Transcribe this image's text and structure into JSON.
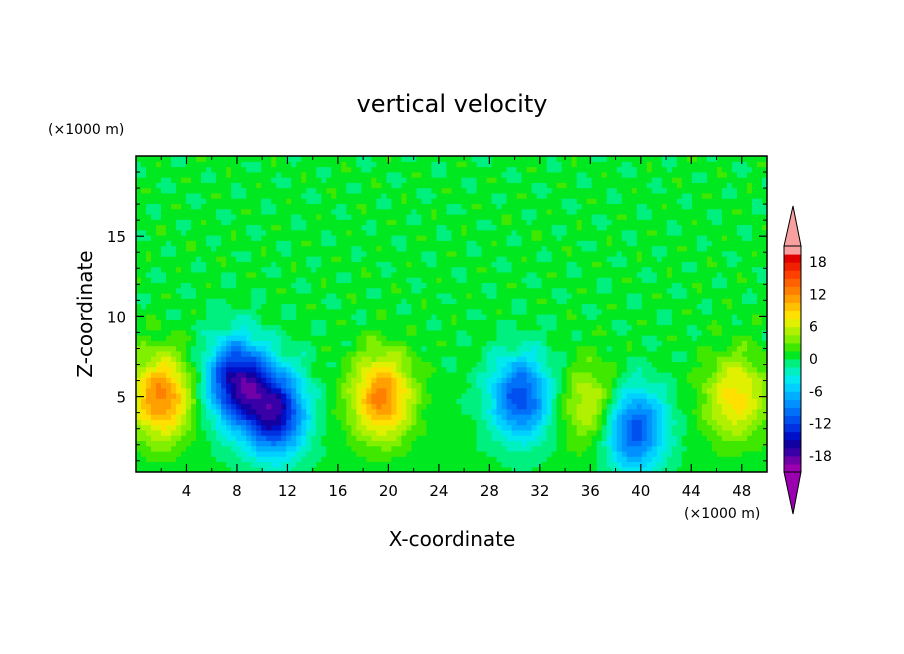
{
  "chart_data": {
    "type": "heatmap",
    "title": "vertical velocity",
    "xlabel": "X-coordinate",
    "ylabel": "Z-coordinate",
    "x_unit": "(×1000 m)",
    "y_unit": "(×1000 m)",
    "xlim": [
      0,
      50
    ],
    "ylim": [
      0.3,
      20
    ],
    "x_ticks": [
      "4",
      "8",
      "12",
      "16",
      "20",
      "24",
      "28",
      "32",
      "36",
      "40",
      "44",
      "48"
    ],
    "y_ticks": [
      "5",
      "10",
      "15"
    ],
    "colorbar": {
      "levels": [
        -21,
        -19.5,
        -18,
        -16.5,
        -15,
        -13.5,
        -12,
        -10.5,
        -9,
        -7.5,
        -6,
        -4.5,
        -3,
        -1.5,
        0,
        1.5,
        3,
        4.5,
        6,
        7.5,
        9,
        10.5,
        12,
        13.5,
        15,
        16.5,
        18,
        19.5,
        21
      ],
      "tick_labels": [
        "-18",
        "-12",
        "-6",
        "0",
        "6",
        "12",
        "18"
      ],
      "tick_values": [
        -18,
        -12,
        -6,
        0,
        6,
        12,
        18
      ],
      "extend": "both",
      "colors": [
        "#9a00b0",
        "#7000a8",
        "#3a00a8",
        "#1200a0",
        "#0010c8",
        "#0030e0",
        "#0050f0",
        "#0070f8",
        "#0090ff",
        "#00b0ff",
        "#00d0ff",
        "#00e8f0",
        "#00f0c0",
        "#00f080",
        "#00e820",
        "#40e800",
        "#80f000",
        "#b0f000",
        "#e0f000",
        "#ffe000",
        "#ffc000",
        "#ffa000",
        "#ff8000",
        "#ff6000",
        "#ff4000",
        "#f02000",
        "#e00000",
        "#f8a0a0"
      ],
      "under_color": "#9a00b0",
      "over_color": "#f8a0a0"
    },
    "features": [
      {
        "x": 2,
        "z": 5,
        "w": 12
      },
      {
        "x": 8,
        "z": 6,
        "w": -16
      },
      {
        "x": 11,
        "z": 4,
        "w": -16
      },
      {
        "x": 19.5,
        "z": 5,
        "w": 12
      },
      {
        "x": 30.5,
        "z": 5,
        "w": -12
      },
      {
        "x": 36,
        "z": 4.5,
        "w": 6
      },
      {
        "x": 39.5,
        "z": 3,
        "w": -12
      },
      {
        "x": 47.5,
        "z": 5,
        "w": 8
      }
    ]
  }
}
